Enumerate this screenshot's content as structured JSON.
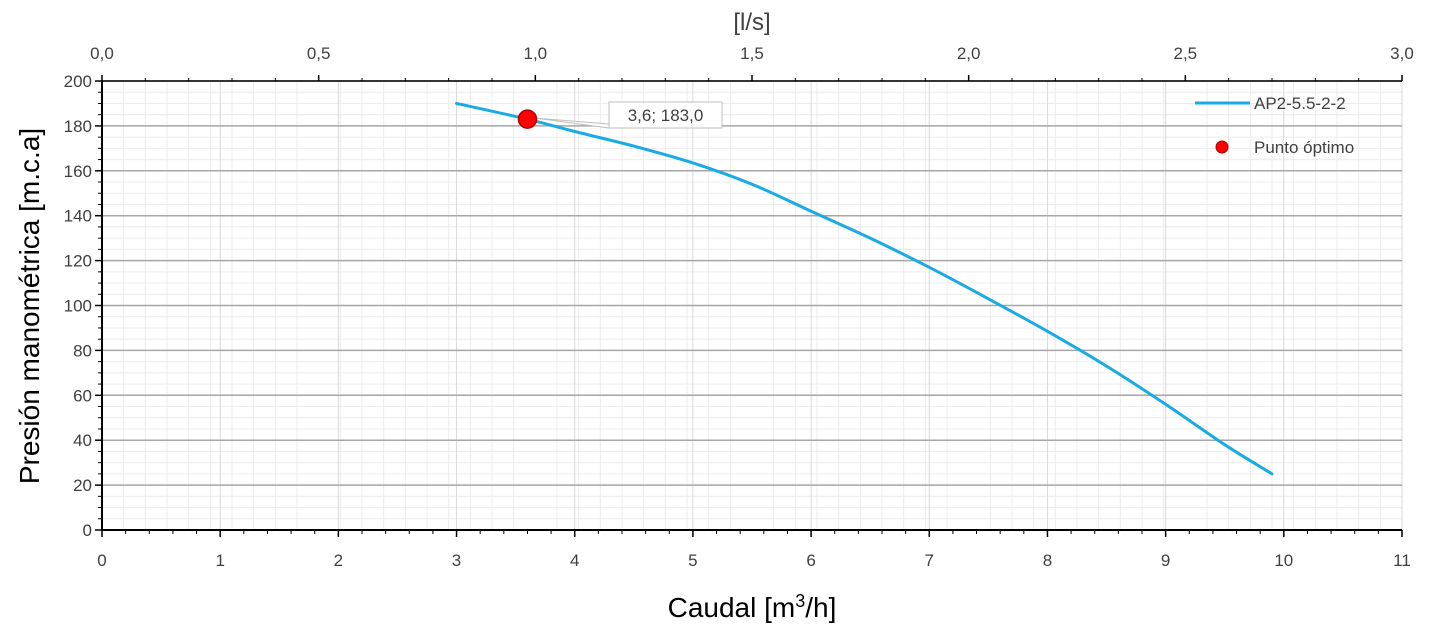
{
  "chart_data": {
    "type": "line",
    "xlabel_prefix": "Caudal [m",
    "xlabel_sup": "3",
    "xlabel_suffix": "/h]",
    "ylabel": "Presión manométrica [m.c.a]",
    "x2label": "[l/s]",
    "xlim": [
      0,
      11
    ],
    "ylim": [
      0,
      200
    ],
    "x2lim": [
      0,
      3.0
    ],
    "xticks": [
      "0",
      "1",
      "2",
      "3",
      "4",
      "5",
      "6",
      "7",
      "8",
      "9",
      "10",
      "11"
    ],
    "yticks": [
      "0",
      "20",
      "40",
      "60",
      "80",
      "100",
      "120",
      "140",
      "160",
      "180",
      "200"
    ],
    "x2ticks": [
      "0,0",
      "0,5",
      "1,0",
      "1,5",
      "2,0",
      "2,5",
      "3,0"
    ],
    "grid": true,
    "legend_position": "top-right",
    "series": [
      {
        "name": "AP2-5.5-2-2",
        "color": "#1aabe6",
        "x": [
          3.0,
          3.6,
          4.0,
          4.5,
          5.0,
          5.5,
          6.0,
          6.5,
          7.0,
          7.5,
          8.0,
          8.5,
          9.0,
          9.5,
          9.9
        ],
        "y": [
          190,
          183,
          177.5,
          171,
          163.5,
          154,
          142,
          130,
          117,
          103,
          88.5,
          73,
          56,
          38,
          25
        ]
      }
    ],
    "points": [
      {
        "name": "Punto óptimo",
        "color": "#ff0000",
        "x": 3.6,
        "y": 183.0,
        "label": "3,6; 183,0"
      }
    ]
  }
}
